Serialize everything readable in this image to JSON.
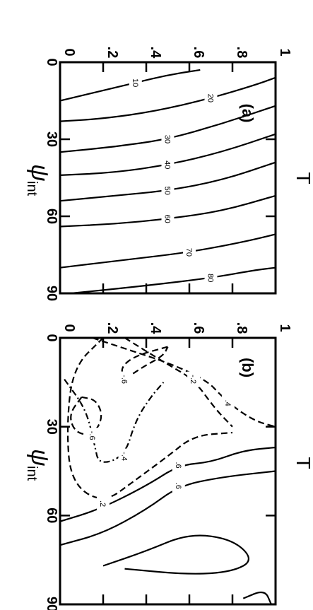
{
  "chart_data": [
    {
      "type": "contour",
      "panel_label": "(a)",
      "xlabel": "ψ",
      "xlabel_subscript": "int",
      "ylabel": "T",
      "x_ticks": [
        "0",
        "30",
        "60",
        "90"
      ],
      "y_ticks": [
        "0",
        ".2",
        ".4",
        ".6",
        ".8",
        "1"
      ],
      "xlim": [
        0,
        90
      ],
      "ylim": [
        0,
        1
      ],
      "contour_labels": [
        "10",
        "20",
        "30",
        "40",
        "50",
        "60",
        "70",
        "80"
      ],
      "contours": [
        {
          "level": 10,
          "style": "solid",
          "points": [
            [
              15,
              0
            ],
            [
              12,
              0.15
            ],
            [
              8,
              0.35
            ],
            [
              5,
              0.5
            ],
            [
              3,
              0.65
            ]
          ]
        },
        {
          "level": 20,
          "style": "solid",
          "points": [
            [
              23,
              0
            ],
            [
              22,
              0.2
            ],
            [
              19,
              0.45
            ],
            [
              14,
              0.7
            ],
            [
              9,
              0.9
            ],
            [
              6,
              1
            ]
          ]
        },
        {
          "level": 30,
          "style": "solid",
          "points": [
            [
              35,
              0
            ],
            [
              33,
              0.25
            ],
            [
              30,
              0.5
            ],
            [
              24,
              0.75
            ],
            [
              17,
              1
            ]
          ]
        },
        {
          "level": 40,
          "style": "solid",
          "points": [
            [
              44,
              0
            ],
            [
              43,
              0.25
            ],
            [
              40,
              0.5
            ],
            [
              35,
              0.75
            ],
            [
              28,
              1
            ]
          ]
        },
        {
          "level": 50,
          "style": "solid",
          "points": [
            [
              54,
              0
            ],
            [
              52,
              0.25
            ],
            [
              50,
              0.5
            ],
            [
              46,
              0.75
            ],
            [
              39,
              1
            ]
          ]
        },
        {
          "level": 60,
          "style": "solid",
          "points": [
            [
              64,
              0
            ],
            [
              63,
              0.25
            ],
            [
              61,
              0.5
            ],
            [
              58,
              0.75
            ],
            [
              52,
              1
            ]
          ]
        },
        {
          "level": 70,
          "style": "solid",
          "points": [
            [
              80,
              0
            ],
            [
              77,
              0.3
            ],
            [
              74,
              0.6
            ],
            [
              70,
              0.85
            ],
            [
              67,
              1
            ]
          ]
        },
        {
          "level": 80,
          "style": "solid",
          "points": [
            [
              90,
              0.05
            ],
            [
              87,
              0.4
            ],
            [
              84,
              0.7
            ],
            [
              81,
              0.9
            ],
            [
              80,
              1
            ]
          ]
        }
      ]
    },
    {
      "type": "contour",
      "panel_label": "(b)",
      "xlabel": "ψ",
      "xlabel_subscript": "int",
      "ylabel": "T",
      "x_ticks": [
        "0",
        "30",
        "60",
        "90"
      ],
      "y_ticks": [
        "0",
        ".2",
        ".4",
        ".6",
        ".8",
        "1"
      ],
      "xlim": [
        0,
        90
      ],
      "ylim": [
        0,
        1
      ],
      "contour_labels": [
        "-.6",
        "-.6",
        "-.4",
        "-.2",
        ".2",
        ".4",
        ".6",
        ".6"
      ],
      "contours": [
        {
          "level": -0.6,
          "style": "dashed",
          "points": [
            [
              20,
              0.1
            ],
            [
              26,
              0.04
            ],
            [
              32,
              0.07
            ],
            [
              33,
              0.15
            ],
            [
              27,
              0.2
            ],
            [
              21,
              0.17
            ],
            [
              20,
              0.1
            ]
          ]
        },
        {
          "level": -0.6,
          "style": "dashed",
          "points": [
            [
              3,
              0.5
            ],
            [
              6,
              0.35
            ],
            [
              10,
              0.28
            ],
            [
              14,
              0.3
            ],
            [
              10,
              0.38
            ],
            [
              6,
              0.48
            ],
            [
              3,
              0.5
            ]
          ]
        },
        {
          "level": -0.4,
          "style": "dashdot",
          "points": [
            [
              14,
              0.02
            ],
            [
              24,
              0.12
            ],
            [
              36,
              0.16
            ],
            [
              43,
              0.18
            ],
            [
              40,
              0.3
            ],
            [
              28,
              0.35
            ],
            [
              20,
              0.42
            ],
            [
              15,
              0.48
            ]
          ]
        },
        {
          "level": -0.4,
          "style": "dashed",
          "points": [
            [
              0,
              0.3
            ],
            [
              9,
              0.5
            ],
            [
              14,
              0.62
            ],
            [
              24,
              0.72
            ],
            [
              30,
              0.8
            ]
          ]
        },
        {
          "level": -0.2,
          "style": "dashed",
          "points": [
            [
              0,
              0.2
            ],
            [
              10,
              0.06
            ],
            [
              30,
              0.03
            ],
            [
              49,
              0.05
            ],
            [
              56,
              0.2
            ],
            [
              48,
              0.35
            ],
            [
              40,
              0.5
            ],
            [
              33,
              0.62
            ],
            [
              32,
              0.8
            ]
          ]
        },
        {
          "level": -0.2,
          "style": "dashed",
          "points": [
            [
              0,
              0.15
            ],
            [
              12,
              0.65
            ],
            [
              22,
              0.78
            ],
            [
              28,
              0.9
            ],
            [
              30,
              1
            ]
          ]
        },
        {
          "level": 0.2,
          "style": "solid",
          "points": [
            [
              62,
              0
            ],
            [
              58,
              0.18
            ],
            [
              50,
              0.4
            ],
            [
              43,
              0.55
            ],
            [
              42,
              0.7
            ],
            [
              38,
              0.85
            ],
            [
              37,
              1
            ]
          ]
        },
        {
          "level": 0.4,
          "style": "solid",
          "points": [
            [
              70,
              0
            ],
            [
              66,
              0.2
            ],
            [
              58,
              0.4
            ],
            [
              50,
              0.55
            ],
            [
              47,
              0.75
            ],
            [
              45,
              1
            ]
          ]
        },
        {
          "level": 0.6,
          "style": "solid",
          "points": [
            [
              77,
              0.2
            ],
            [
              72,
              0.4
            ],
            [
              66,
              0.6
            ],
            [
              68,
              0.8
            ],
            [
              75,
              0.9
            ],
            [
              79,
              0.8
            ],
            [
              80,
              0.6
            ],
            [
              78,
              0.3
            ]
          ]
        },
        {
          "level": 0.6,
          "style": "solid",
          "points": [
            [
              88,
              0.85
            ],
            [
              85,
              0.95
            ],
            [
              90,
              0.98
            ]
          ]
        }
      ]
    }
  ]
}
